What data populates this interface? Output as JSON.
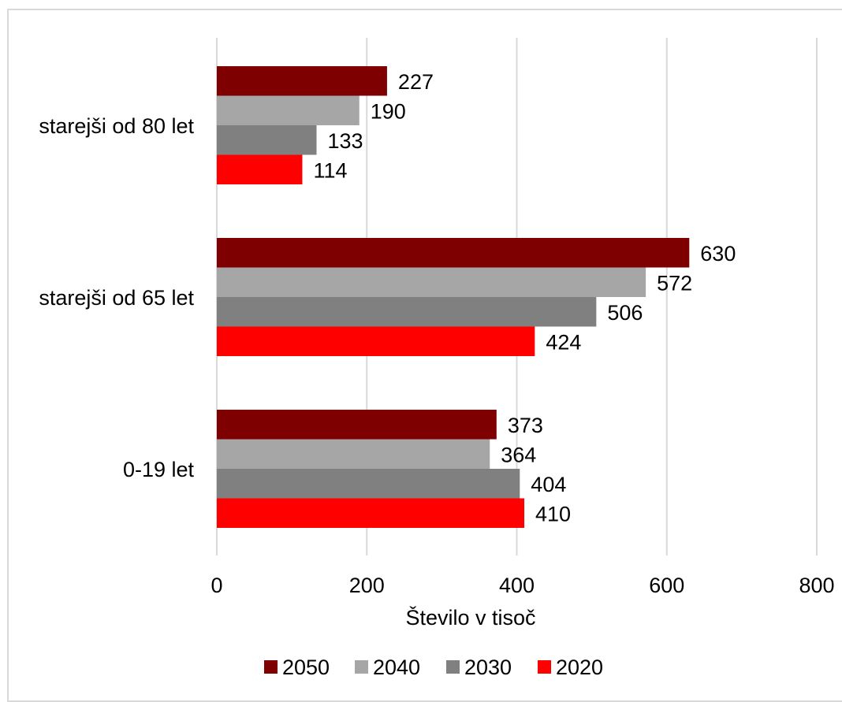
{
  "chart_data": {
    "type": "bar",
    "orientation": "horizontal",
    "categories": [
      "starejši od 80 let",
      "starejši od 65 let",
      "0-19 let"
    ],
    "series": [
      {
        "name": "2050",
        "color": "#7f0000",
        "values": [
          227,
          630,
          373
        ]
      },
      {
        "name": "2040",
        "color": "#a6a6a6",
        "values": [
          190,
          572,
          364
        ]
      },
      {
        "name": "2030",
        "color": "#808080",
        "values": [
          133,
          506,
          404
        ]
      },
      {
        "name": "2020",
        "color": "#ff0000",
        "values": [
          114,
          424,
          410
        ]
      }
    ],
    "xlabel": "Število v tisoč",
    "ylabel": "",
    "xlim": [
      0,
      800
    ],
    "xticks": [
      "0",
      "200",
      "400",
      "600",
      "800"
    ],
    "grid": "vertical",
    "legend": "bottom",
    "data_labels": true
  }
}
